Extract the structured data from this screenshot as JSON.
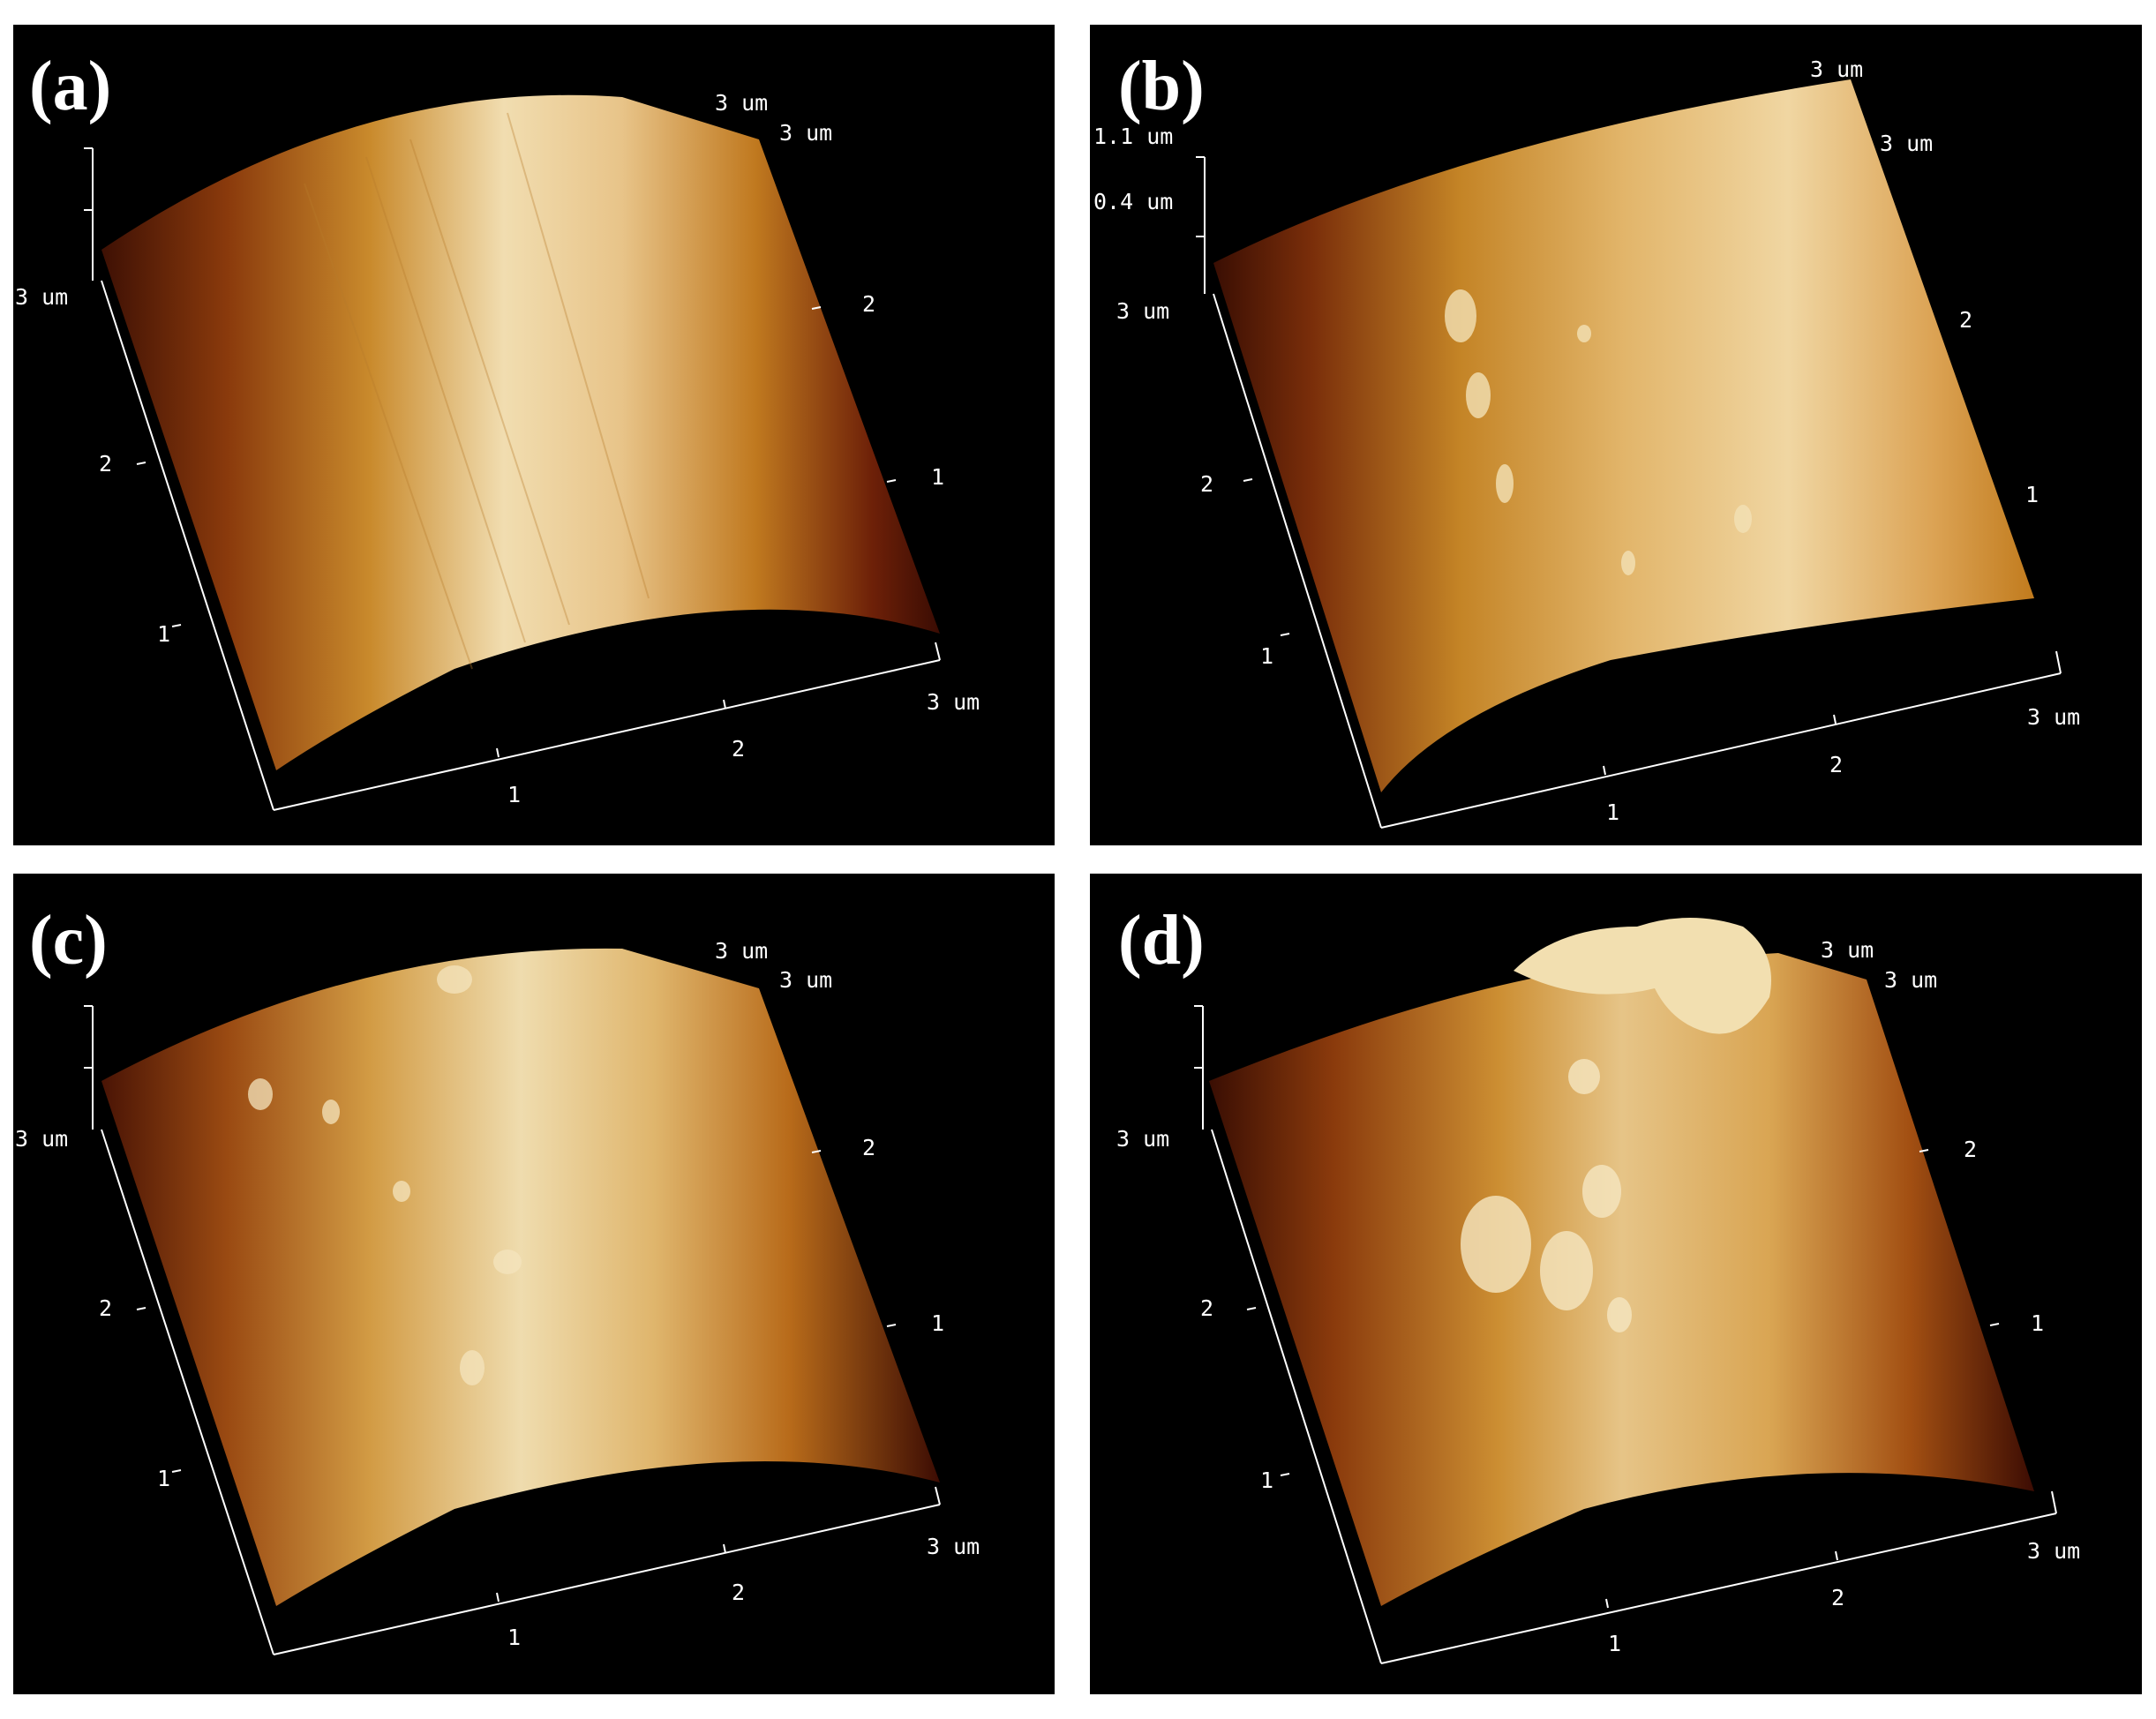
{
  "panels": [
    {
      "id": "a",
      "label": "(a)",
      "bump_level": 0,
      "axis": {
        "top_x": "3 um",
        "top_y": "3 um",
        "left_z": "3 um",
        "y_ticks": [
          "2",
          "1"
        ],
        "left_ticks": [
          "2",
          "1"
        ],
        "x_ticks": [
          "1",
          "2"
        ],
        "x_end": "3 um"
      }
    },
    {
      "id": "b",
      "label": "(b)",
      "bump_level": 1,
      "axis": {
        "top_x": "3 um",
        "top_y": "3 um",
        "left_z": "3 um",
        "z_top": "1.1 um",
        "z_mid": "0.4 um",
        "y_ticks": [
          "2",
          "1"
        ],
        "left_ticks": [
          "2",
          "1"
        ],
        "x_ticks": [
          "1",
          "2"
        ],
        "x_end": "3 um"
      }
    },
    {
      "id": "c",
      "label": "(c)",
      "bump_level": 2,
      "axis": {
        "top_x": "3 um",
        "top_y": "3 um",
        "left_z": "3 um",
        "y_ticks": [
          "2",
          "1"
        ],
        "left_ticks": [
          "2",
          "1"
        ],
        "x_ticks": [
          "1",
          "2"
        ],
        "x_end": "3 um"
      }
    },
    {
      "id": "d",
      "label": "(d)",
      "bump_level": 3,
      "axis": {
        "top_x": "3 um",
        "top_y": "3 um",
        "left_z": "3 um",
        "y_ticks": [
          "2",
          "1"
        ],
        "left_ticks": [
          "2",
          "1"
        ],
        "x_ticks": [
          "1",
          "2"
        ],
        "x_end": "3 um"
      }
    }
  ],
  "colors": {
    "background": "#000000",
    "surface_dark": "#5a1a06",
    "surface_mid": "#c98a2c",
    "surface_light": "#efdcae",
    "axis": "#ffffff"
  }
}
